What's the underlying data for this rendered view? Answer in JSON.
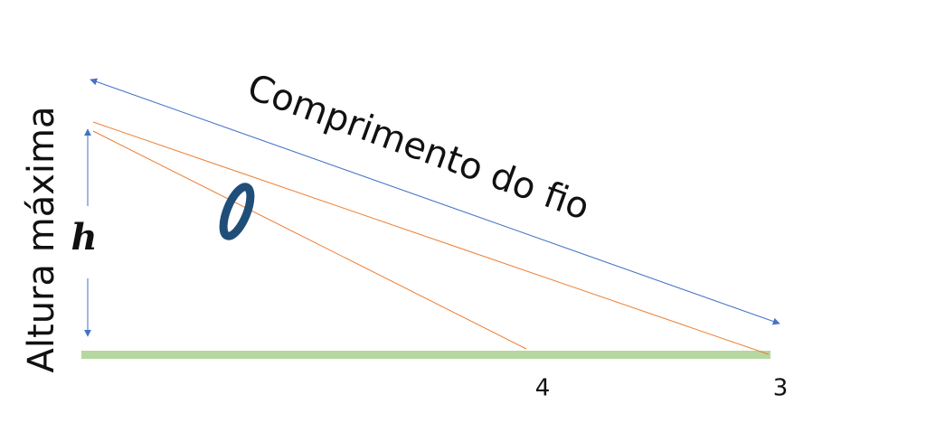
{
  "diagram": {
    "length_label": "Comprimento do fio",
    "height_label": "Altura máxima",
    "height_symbol": "h",
    "marks": [
      "4",
      "3"
    ]
  }
}
